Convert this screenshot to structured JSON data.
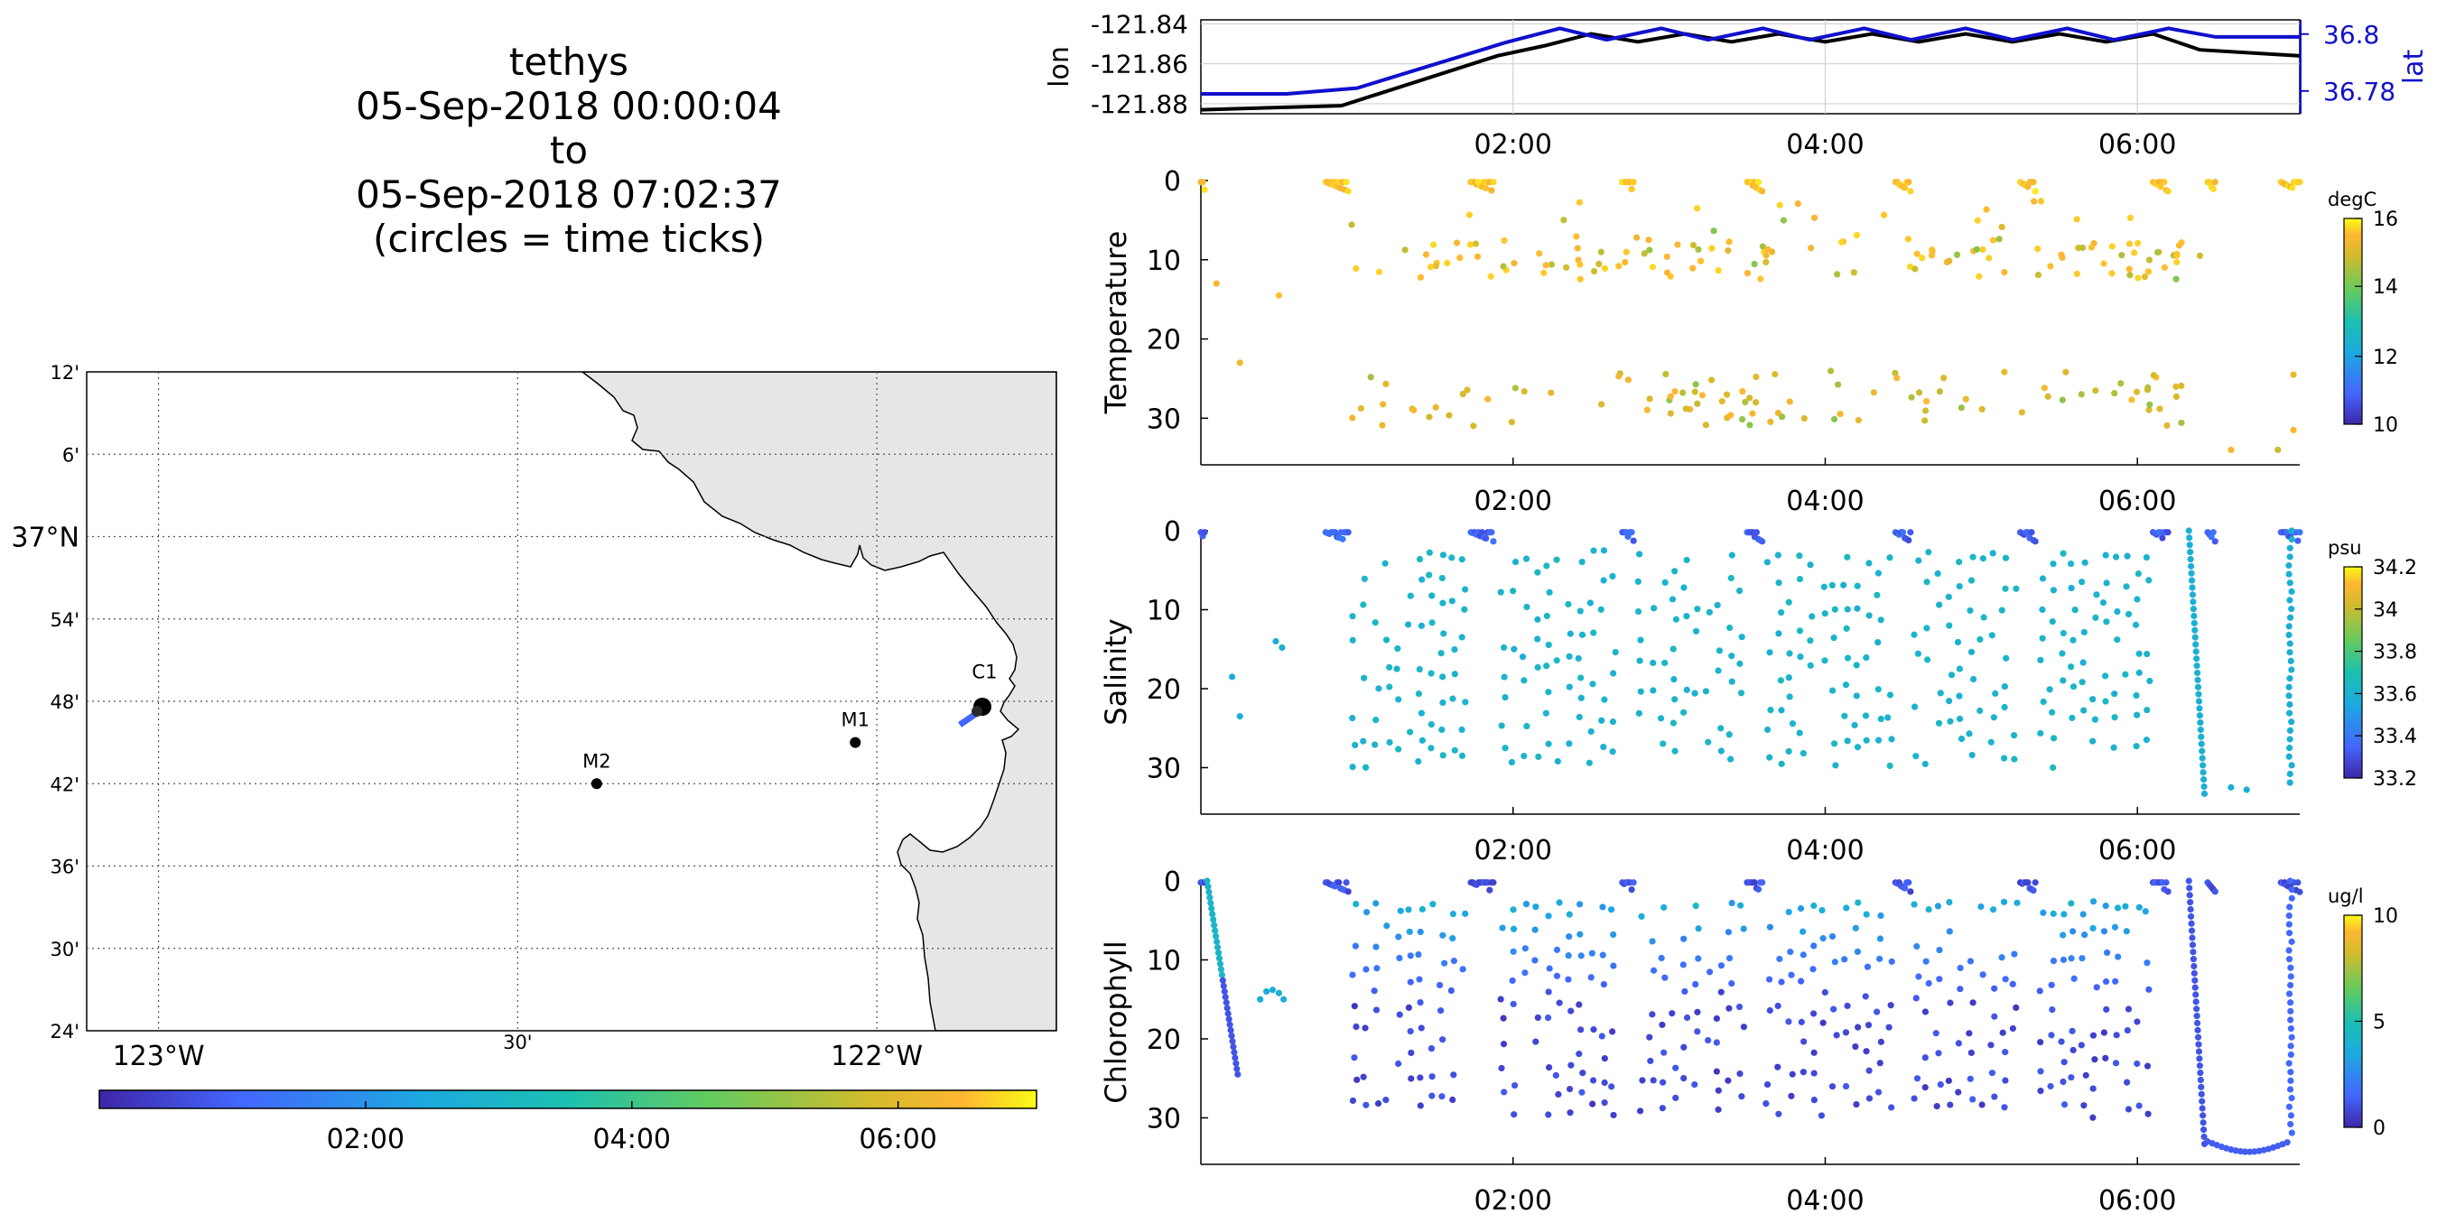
{
  "title": {
    "vehicle": "tethys",
    "start": "05-Sep-2018 00:00:04",
    "sep": "to",
    "end": "05-Sep-2018 07:02:37",
    "note": "(circles = time ticks)"
  },
  "map": {
    "lat_labels": [
      "12'",
      "6'",
      "37°N",
      "54'",
      "48'",
      "42'",
      "36'",
      "30'",
      "24'"
    ],
    "lat_values": [
      37.2,
      37.1,
      37.0,
      36.9,
      36.8,
      36.7,
      36.6,
      36.5,
      36.4
    ],
    "lon_labels": [
      "123°W",
      "30'",
      "122°W"
    ],
    "lon_values": [
      -123.0,
      -122.5,
      -122.0
    ],
    "lon_range": [
      -123.1,
      -121.75
    ],
    "lat_range": [
      36.4,
      37.2
    ],
    "stations": [
      {
        "name": "M2",
        "lon": -122.39,
        "lat": 36.7
      },
      {
        "name": "M1",
        "lon": -122.03,
        "lat": 36.75
      },
      {
        "name": "C1",
        "lon": -121.85,
        "lat": 36.795
      }
    ],
    "colorbar_ticks": [
      "02:00",
      "04:00",
      "06:00"
    ],
    "colorbar_colors": [
      "#3e26a8",
      "#4367fd",
      "#1caadf",
      "#1cc0b0",
      "#63cb5f",
      "#d3bb2c",
      "#feb632",
      "#f9fb15"
    ]
  },
  "chart_data": [
    {
      "type": "line",
      "title": "",
      "xlabel": "",
      "ylabel": "lon",
      "ylabel_right": "lat",
      "x_range_hours": [
        0,
        7.04
      ],
      "x_ticks": [
        "02:00",
        "04:00",
        "06:00"
      ],
      "y_ticks_left": [
        "-121.84",
        "-121.86",
        "-121.88"
      ],
      "y_ticks_right": [
        "36.8",
        "36.78"
      ],
      "series": [
        {
          "name": "lon",
          "color": "#000000",
          "x": [
            0,
            0.9,
            1.9,
            2.2,
            2.5,
            2.8,
            3.1,
            3.4,
            3.7,
            4.0,
            4.3,
            4.6,
            4.9,
            5.2,
            5.5,
            5.8,
            6.1,
            6.4,
            7.04
          ],
          "values": [
            -121.883,
            -121.881,
            -121.856,
            -121.851,
            -121.845,
            -121.849,
            -121.845,
            -121.849,
            -121.845,
            -121.849,
            -121.845,
            -121.849,
            -121.845,
            -121.849,
            -121.845,
            -121.849,
            -121.845,
            -121.853,
            -121.856
          ]
        },
        {
          "name": "lat",
          "color": "#1010cc",
          "x": [
            0,
            0.55,
            1.0,
            1.95,
            2.3,
            2.6,
            2.95,
            3.25,
            3.6,
            3.9,
            4.25,
            4.55,
            4.9,
            5.2,
            5.55,
            5.85,
            6.2,
            6.5,
            7.04
          ],
          "values": [
            36.779,
            36.779,
            36.781,
            36.797,
            36.802,
            36.798,
            36.802,
            36.798,
            36.802,
            36.798,
            36.802,
            36.798,
            36.802,
            36.798,
            36.802,
            36.798,
            36.802,
            36.799,
            36.799
          ]
        }
      ]
    },
    {
      "type": "scatter",
      "ylabel": "Temperature",
      "colorbar_label": "degC",
      "colorbar_ticks": [
        "16",
        "14",
        "12",
        "10"
      ],
      "x_ticks": [
        "02:00",
        "04:00",
        "06:00"
      ],
      "y_ticks": [
        "0",
        "10",
        "20",
        "30"
      ],
      "ylim": [
        0,
        36
      ]
    },
    {
      "type": "scatter",
      "ylabel": "Salinity",
      "colorbar_label": "psu",
      "colorbar_ticks": [
        "34.2",
        "34",
        "33.8",
        "33.6",
        "33.4",
        "33.2"
      ],
      "x_ticks": [
        "02:00",
        "04:00",
        "06:00"
      ],
      "y_ticks": [
        "0",
        "10",
        "20",
        "30"
      ],
      "ylim": [
        0,
        36
      ]
    },
    {
      "type": "scatter",
      "ylabel": "Chlorophyll",
      "colorbar_label": "ug/l",
      "colorbar_ticks": [
        "10",
        "5",
        "0"
      ],
      "x_ticks": [
        "02:00",
        "04:00",
        "06:00"
      ],
      "y_ticks": [
        "0",
        "10",
        "20",
        "30"
      ],
      "ylim": [
        0,
        36
      ]
    }
  ]
}
